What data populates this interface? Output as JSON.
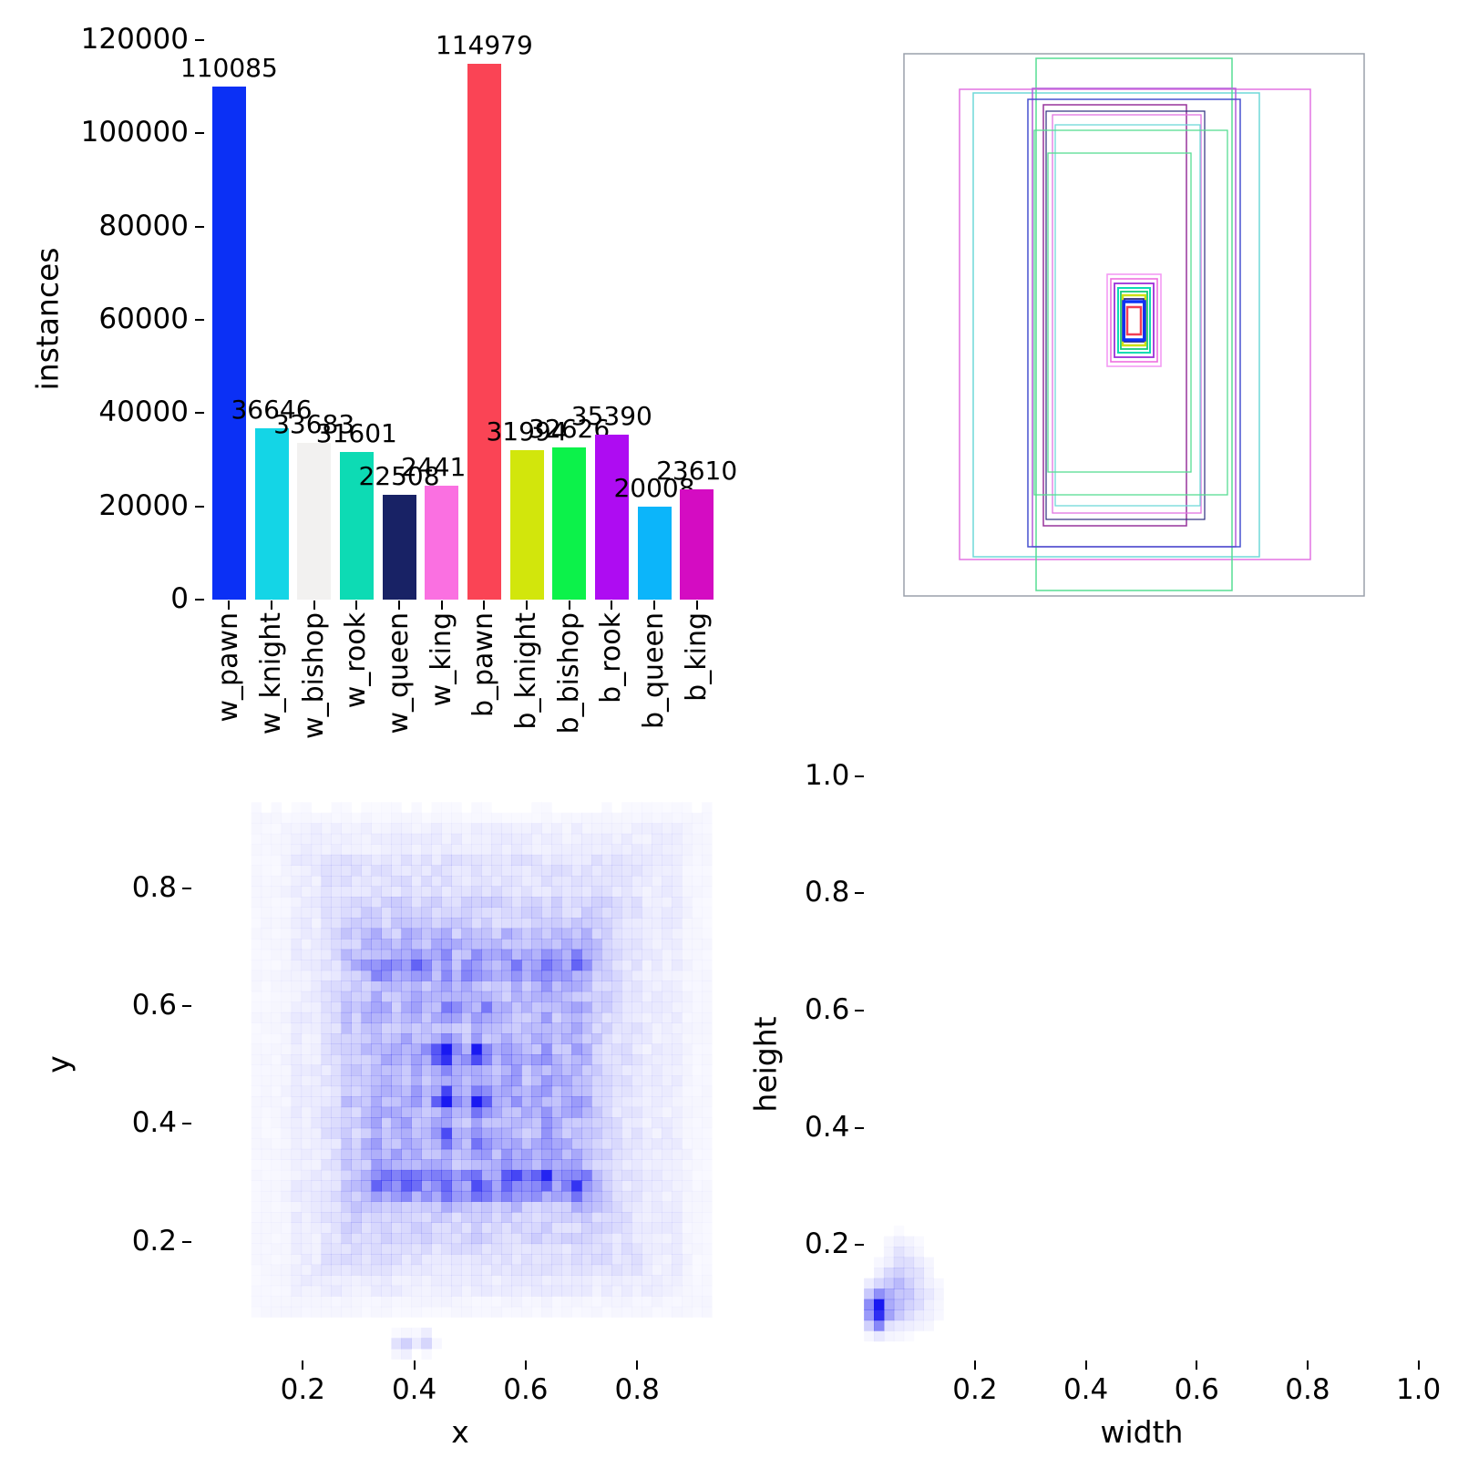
{
  "figure": {
    "background": "#ffffff"
  },
  "chart_data": [
    {
      "type": "bar",
      "ylabel": "instances",
      "categories": [
        "w_pawn",
        "w_knight",
        "w_bishop",
        "w_rook",
        "w_queen",
        "w_king",
        "b_pawn",
        "b_knight",
        "b_bishop",
        "b_rook",
        "b_queen",
        "b_king"
      ],
      "values": [
        110085,
        36646,
        33683,
        31601,
        22508,
        24412,
        114979,
        31994,
        32626,
        35390,
        20008,
        23610
      ],
      "bar_colors": [
        "#0b30f5",
        "#14d5e6",
        "#f2f1f0",
        "#0ddbb4",
        "#182265",
        "#fa70e1",
        "#fa4455",
        "#d2e60c",
        "#0cf24a",
        "#ae0cf2",
        "#0cb5fa",
        "#d40cc2"
      ],
      "yticks": [
        0,
        20000,
        40000,
        60000,
        80000,
        100000,
        120000
      ],
      "ylim": [
        0,
        126000
      ],
      "value_labels": true,
      "grid": false
    },
    {
      "type": "boxes-overlay",
      "description": "overlapping bounding-box outline rectangles, no axes ticks",
      "rects": [
        [
          "#9aa0ab",
          32,
          24,
          505,
          595,
          1.5
        ],
        [
          "#e273e2",
          93,
          63,
          385,
          516,
          1.5
        ],
        [
          "#6fd9d9",
          108,
          67,
          314,
          509,
          1.5
        ],
        [
          "#57dd93",
          177,
          29,
          215,
          584,
          1.5
        ],
        [
          "#b45fd9",
          173,
          62,
          223,
          503,
          1.5
        ],
        [
          "#4750cf",
          168,
          74,
          233,
          491,
          1.5
        ],
        [
          "#97349c",
          185,
          80,
          157,
          462,
          1.5
        ],
        [
          "#2d2d7f",
          188,
          87,
          174,
          448,
          1.2
        ],
        [
          "#e273e2",
          195,
          91,
          163,
          437,
          1.3
        ],
        [
          "#6fd9d9",
          198,
          102,
          159,
          418,
          1.3
        ],
        [
          "#57dd93",
          175,
          108,
          212,
          400,
          1.3
        ],
        [
          "#57dd93",
          190,
          133,
          157,
          350,
          1.3
        ],
        [
          "#f49bf4",
          255,
          266,
          59,
          101,
          1.6
        ],
        [
          "#ee6fe0",
          259,
          271,
          51,
          91,
          1.6
        ],
        [
          "#9b30d9",
          263,
          276,
          43,
          81,
          1.8
        ],
        [
          "#0ddbb4",
          267,
          281,
          35,
          71,
          2.0
        ],
        [
          "#16c97a",
          270,
          285,
          29,
          63,
          1.8
        ],
        [
          "#cde014",
          272,
          289,
          25,
          55,
          2.5
        ],
        [
          "#2d2d7f",
          274,
          293,
          21,
          47,
          1.8
        ],
        [
          "#0b30f5",
          273,
          296,
          23,
          42,
          3.5
        ],
        [
          "#f23d55",
          277,
          302,
          15,
          30,
          2.5
        ]
      ]
    },
    {
      "type": "heatmap",
      "xlabel": "x",
      "ylabel": "y",
      "xticks": [
        0.2,
        0.4,
        0.6,
        0.8
      ],
      "yticks": [
        0.2,
        0.4,
        0.6,
        0.8
      ],
      "color": "#0d0df0",
      "bins": [
        54,
        56
      ],
      "urange": [
        0,
        0.97
      ],
      "vrange": [
        0,
        1.0
      ],
      "seed": 7,
      "noise": 0.5,
      "boxes": [
        [
          0.09,
          0.955,
          0.05,
          0.955,
          0.045
        ],
        [
          0.16,
          0.9,
          0.09,
          0.92,
          0.05
        ],
        [
          0.22,
          0.82,
          0.13,
          0.87,
          0.06
        ],
        [
          0.26,
          0.77,
          0.18,
          0.8,
          0.07
        ],
        [
          0.285,
          0.745,
          0.245,
          0.75,
          0.09
        ],
        [
          0.285,
          0.745,
          0.25,
          0.335,
          0.17
        ],
        [
          0.3,
          0.73,
          0.62,
          0.72,
          0.08
        ],
        [
          0.33,
          0.7,
          0.28,
          0.56,
          0.05
        ]
      ],
      "vstripes": {
        "xs": [
          0.276,
          0.336,
          0.396,
          0.456,
          0.516,
          0.576,
          0.636,
          0.696
        ],
        "sigma": 0.0085,
        "amp": 0.1,
        "range": [
          0.245,
          0.745
        ]
      },
      "hstripes": {
        "ys": [
          0.285,
          0.35,
          0.44,
          0.518,
          0.59,
          0.66
        ],
        "sigma": 0.008,
        "amp": 0.045,
        "range": [
          0.285,
          0.745
        ]
      },
      "hotspot_sigma": 0.011,
      "hotspots": [
        [
          0.456,
          0.518,
          0.82
        ],
        [
          0.516,
          0.518,
          0.75
        ],
        [
          0.456,
          0.44,
          0.88
        ],
        [
          0.516,
          0.44,
          0.78
        ],
        [
          0.456,
          0.38,
          0.35
        ],
        [
          0.516,
          0.375,
          0.3
        ],
        [
          0.336,
          0.3,
          0.3
        ],
        [
          0.396,
          0.31,
          0.35
        ],
        [
          0.456,
          0.3,
          0.3
        ],
        [
          0.516,
          0.3,
          0.28
        ],
        [
          0.576,
          0.31,
          0.38
        ],
        [
          0.636,
          0.315,
          0.42
        ],
        [
          0.696,
          0.3,
          0.3
        ],
        [
          0.35,
          0.66,
          0.28
        ],
        [
          0.41,
          0.665,
          0.3
        ],
        [
          0.3,
          0.675,
          0.22
        ],
        [
          0.5,
          0.66,
          0.24
        ],
        [
          0.59,
          0.66,
          0.24
        ],
        [
          0.648,
          0.66,
          0.28
        ],
        [
          0.7,
          0.675,
          0.26
        ],
        [
          0.43,
          0.52,
          0.22
        ],
        [
          0.57,
          0.52,
          0.2
        ],
        [
          0.47,
          0.6,
          0.25
        ],
        [
          0.53,
          0.6,
          0.22
        ],
        [
          0.38,
          0.025,
          0.22
        ],
        [
          0.42,
          0.03,
          0.18
        ]
      ]
    },
    {
      "type": "heatmap",
      "xlabel": "width",
      "ylabel": "height",
      "xticks": [
        0.2,
        0.4,
        0.6,
        0.8,
        1.0
      ],
      "yticks": [
        0.2,
        0.4,
        0.6,
        0.8,
        1.0
      ],
      "color": "#0d0df0",
      "bins": [
        58,
        57
      ],
      "urange": [
        0,
        1.04
      ],
      "vrange": [
        0,
        1.02
      ],
      "seed": 11,
      "noise": 0.4,
      "boxes": [],
      "gaussians": [
        [
          0.024,
          0.09,
          0.014,
          0.022,
          0.65
        ],
        [
          0.05,
          0.11,
          0.022,
          0.03,
          0.3
        ],
        [
          0.08,
          0.145,
          0.025,
          0.035,
          0.14
        ],
        [
          0.06,
          0.19,
          0.018,
          0.018,
          0.07
        ],
        [
          0.1,
          0.1,
          0.03,
          0.03,
          0.1
        ]
      ],
      "hotspot_sigma": 0.0075,
      "hotspots": [
        [
          0.022,
          0.093,
          1.0
        ],
        [
          0.022,
          0.072,
          0.55
        ]
      ]
    }
  ]
}
